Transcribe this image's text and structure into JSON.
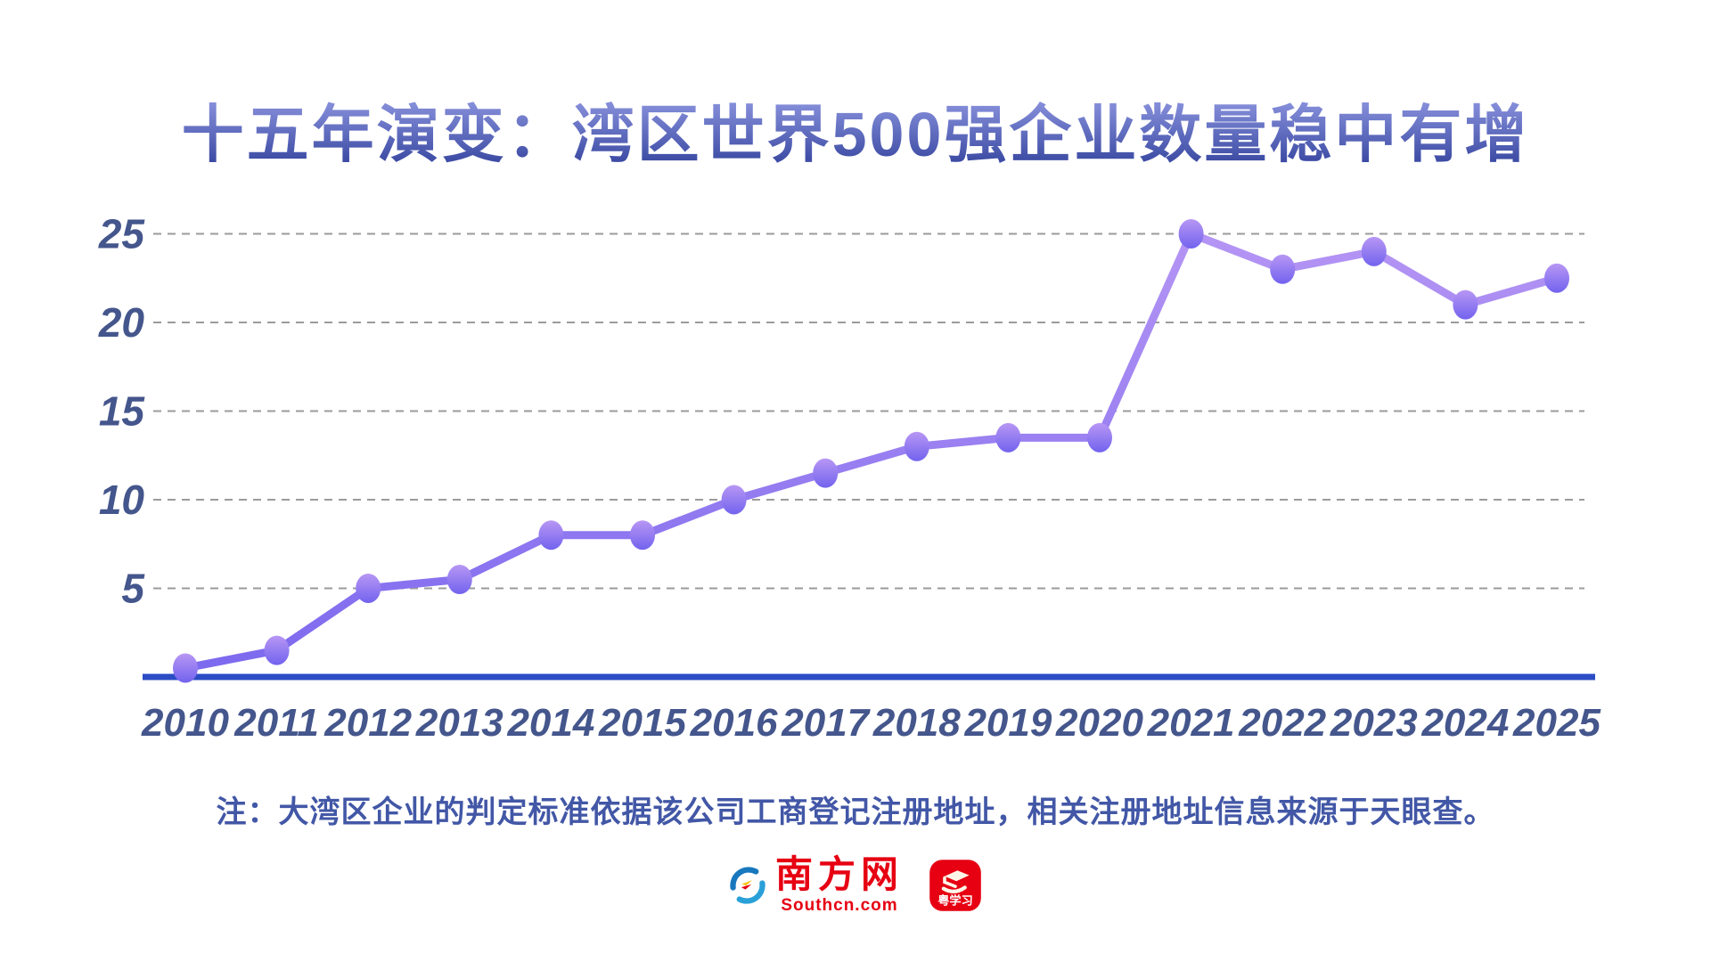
{
  "title": "十五年演变：湾区世界500强企业数量稳中有增",
  "note": "注：大湾区企业的判定标准依据该公司工商登记注册地址，相关注册地址信息来源于天眼查。",
  "footer": {
    "southcn_name": "南方网",
    "southcn_domain": "Southcn.com",
    "yuexuexi_name": "粤学习"
  },
  "colors": {
    "title_top": "#8a93dd",
    "title_bottom": "#3b4aa3",
    "axis_label": "#44568c",
    "grid_line": "#9b9b9b",
    "baseline": "#2b4cc4",
    "line_light": "#b696f4",
    "line_dark": "#7b68ee",
    "dot_light": "#b897f4",
    "dot_dark": "#7263ee",
    "note_color": "#4257a6",
    "logo_red": "#e60012",
    "logo_blue_dark": "#1878be",
    "logo_blue_light": "#2aa0d8",
    "logo_yellow": "#f7c51e"
  },
  "chart_data": {
    "type": "line",
    "x": [
      "2010",
      "2011",
      "2012",
      "2013",
      "2014",
      "2015",
      "2016",
      "2017",
      "2018",
      "2019",
      "2020",
      "2021",
      "2022",
      "2023",
      "2024",
      "2025"
    ],
    "values": [
      0.5,
      1.5,
      5,
      5.5,
      8,
      8,
      10,
      11.5,
      13,
      13.5,
      13.5,
      25,
      23,
      24,
      21,
      22.5
    ],
    "series_name": "湾区世界500强企业数量",
    "yticks": [
      5,
      10,
      15,
      20,
      25
    ],
    "ylim": [
      0,
      26
    ],
    "xlabel": "",
    "ylabel": "",
    "grid": "horizontal-dashed",
    "legend": "none"
  }
}
